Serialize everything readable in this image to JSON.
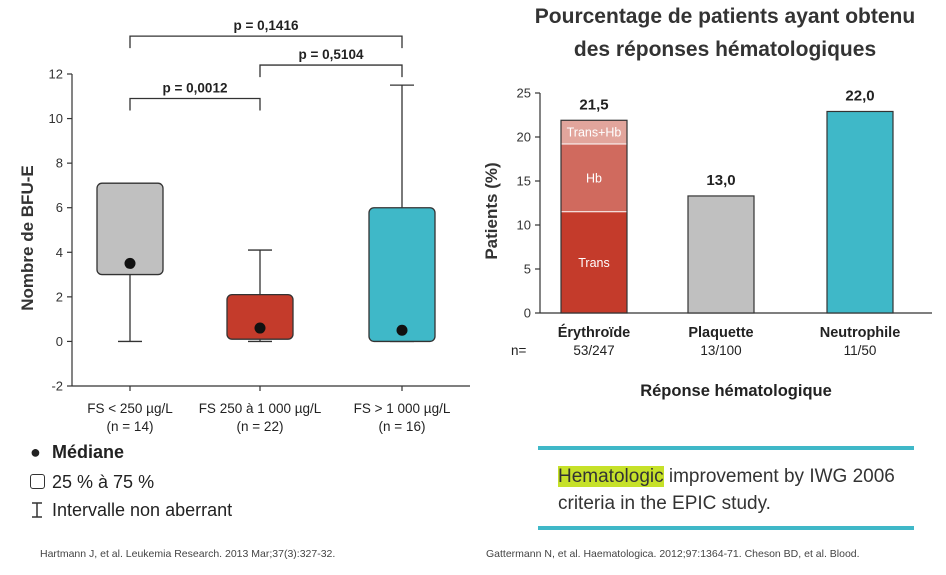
{
  "colors": {
    "gray": "#c0c0c0",
    "red": "#c43b2b",
    "teal": "#3fb8c8",
    "hb": "#d06a5e",
    "transhb": "#e2a59c",
    "highlight": "#c6e129",
    "rule": "#3fb8c8"
  },
  "left_chart": {
    "ylabel": "Nombre de BFU-E",
    "median_legend": "Médiane",
    "box_legend": "25 % à 75 %",
    "whisker_legend": "Intervalle non aberrant",
    "pvalues": [
      "p = 0,1416",
      "p = 0,5104",
      "p = 0,0012"
    ]
  },
  "right_chart": {
    "title_line1": "Pourcentage de patients ayant obtenu",
    "title_line2": "des réponses hématologiques",
    "n_prefix": "n=",
    "segment_labels": [
      "Trans+Hb",
      "Hb",
      "Trans"
    ]
  },
  "note": {
    "highlight": "Hematologic",
    "text": " improvement by IWG 2006 criteria in the EPIC study."
  },
  "sources": {
    "left": "Hartmann J, et al. Leukemia Research. 2013 Mar;37(3):327-32.",
    "right": "Gattermann N, et al. Haematologica. 2012;97:1364-71. Cheson BD, et al. Blood."
  },
  "chart_data": [
    {
      "type": "box",
      "ylabel": "Nombre de BFU-E",
      "ylim": [
        -2,
        12
      ],
      "yticks": [
        -2,
        0,
        2,
        4,
        6,
        8,
        10,
        12
      ],
      "categories": [
        {
          "label": "FS < 250 µg/L",
          "n": "(n = 14)",
          "q1": 3.0,
          "q3": 7.1,
          "median": 3.5,
          "min": 0.0,
          "max": 7.1,
          "color": "#c0c0c0"
        },
        {
          "label": "FS 250 à 1 000 µg/L",
          "n": "(n = 22)",
          "q1": 0.1,
          "q3": 2.1,
          "median": 0.6,
          "min": 0.0,
          "max": 4.1,
          "color": "#c43b2b"
        },
        {
          "label": "FS > 1 000 µg/L",
          "n": "(n = 16)",
          "q1": 0.0,
          "q3": 6.0,
          "median": 0.5,
          "min": 0.0,
          "max": 11.5,
          "color": "#3fb8c8"
        }
      ],
      "comparisons": [
        {
          "from": 0,
          "to": 2,
          "label": "p = 0,1416",
          "level": 13.7
        },
        {
          "from": 1,
          "to": 2,
          "label": "p = 0,5104",
          "level": 12.4
        },
        {
          "from": 0,
          "to": 1,
          "label": "p = 0,0012",
          "level": 10.9
        }
      ]
    },
    {
      "type": "bar",
      "title": "Pourcentage de patients ayant obtenu des réponses hématologiques",
      "xlabel": "Réponse hématologique",
      "ylabel": "Patients (%)",
      "ylim": [
        0,
        25
      ],
      "yticks": [
        0,
        5,
        10,
        15,
        20,
        25
      ],
      "categories": [
        "Érythroïde",
        "Plaquette",
        "Neutrophile"
      ],
      "n": [
        "53/247",
        "13/100",
        "11/50"
      ],
      "values": [
        21.5,
        13.0,
        22.0
      ],
      "value_labels": [
        "21,5",
        "13,0",
        "22,0"
      ],
      "bar_heights": [
        21.9,
        13.3,
        22.9
      ],
      "colors": [
        "#c43b2b",
        "#c0c0c0",
        "#3fb8c8"
      ],
      "stack_erythroide": [
        {
          "name": "Trans",
          "value": 11.5,
          "color": "#c43b2b"
        },
        {
          "name": "Hb",
          "value": 7.7,
          "color": "#d06a5e"
        },
        {
          "name": "Trans+Hb",
          "value": 2.7,
          "color": "#e2a59c"
        }
      ]
    }
  ]
}
